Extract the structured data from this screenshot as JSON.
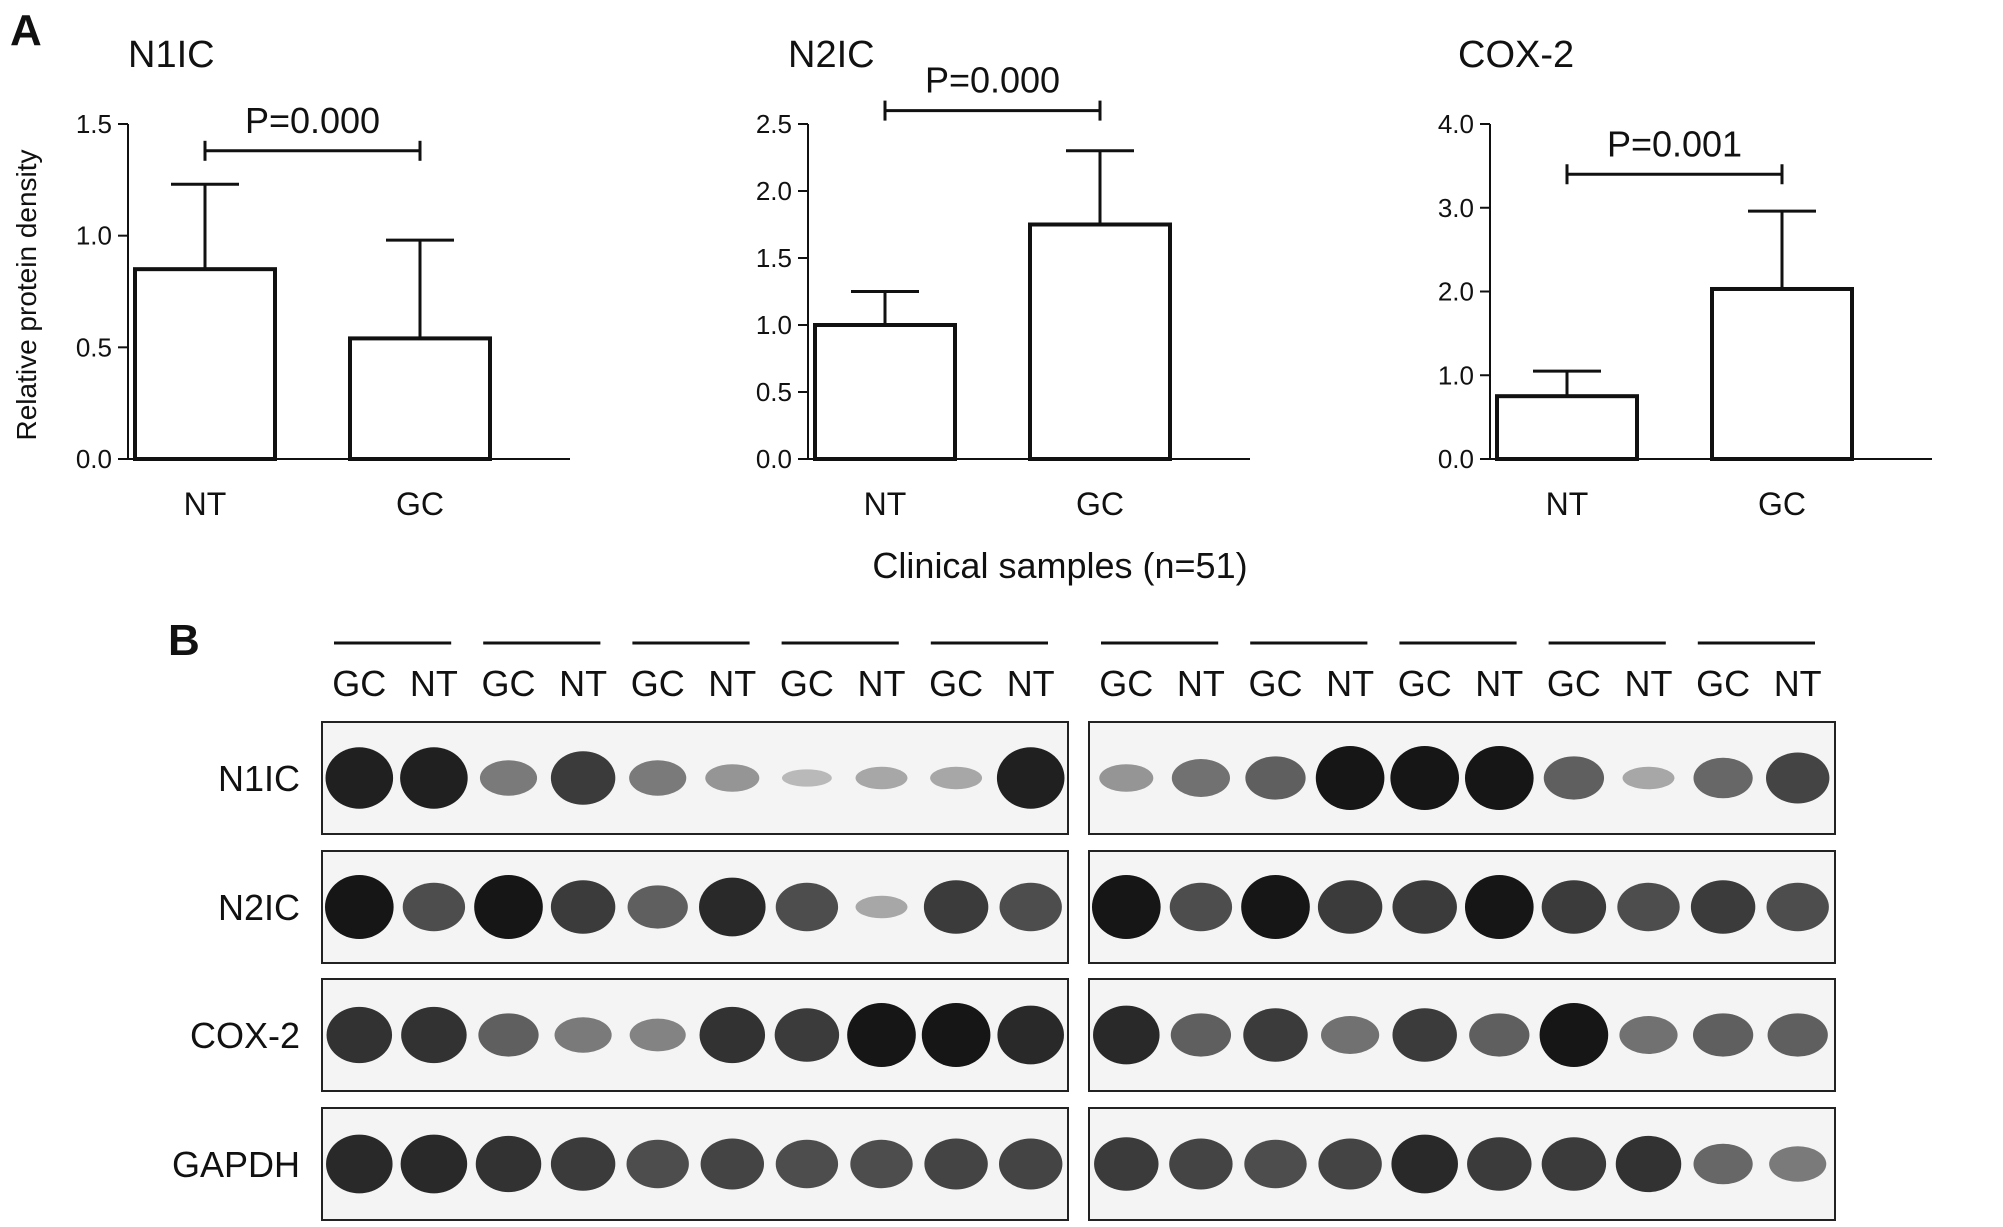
{
  "panel_a": {
    "letter": "A",
    "ylabel": "Relative protein density",
    "xlabel_shared": "Clinical samples (n=51)"
  },
  "chart_data": [
    {
      "type": "bar",
      "title": "N1IC",
      "categories": [
        "NT",
        "GC"
      ],
      "values": [
        0.85,
        0.54
      ],
      "error_upper": [
        0.38,
        0.44
      ],
      "ylim": [
        0,
        1.5
      ],
      "yticks": [
        "0.0",
        "0.5",
        "1.0",
        "1.5"
      ],
      "ytick_values": [
        0,
        0.5,
        1.0,
        1.5
      ],
      "annotation": {
        "text": "P=0.000",
        "bracket_level": 1.38,
        "label_level": 1.45
      },
      "ylabel": "Relative protein density",
      "xlabel": "",
      "grid": false,
      "bar_fill": "#ffffff",
      "bar_stroke": "#111111"
    },
    {
      "type": "bar",
      "title": "N2IC",
      "categories": [
        "NT",
        "GC"
      ],
      "values": [
        1.0,
        1.75
      ],
      "error_upper": [
        0.25,
        0.55
      ],
      "ylim": [
        0,
        2.5
      ],
      "yticks": [
        "0.0",
        "0.5",
        "1.0",
        "1.5",
        "2.0",
        "2.5"
      ],
      "ytick_values": [
        0,
        0.5,
        1.0,
        1.5,
        2.0,
        2.5
      ],
      "annotation": {
        "text": "P=0.000",
        "bracket_level": 2.6,
        "label_level": 2.75
      },
      "ylabel": "",
      "xlabel": "Clinical samples (n=51)",
      "grid": false,
      "bar_fill": "#ffffff",
      "bar_stroke": "#111111"
    },
    {
      "type": "bar",
      "title": "COX-2",
      "categories": [
        "NT",
        "GC"
      ],
      "values": [
        0.75,
        2.03
      ],
      "error_upper": [
        0.3,
        0.93
      ],
      "ylim": [
        0,
        4.0
      ],
      "yticks": [
        "0.0",
        "1.0",
        "2.0",
        "3.0",
        "4.0"
      ],
      "ytick_values": [
        0,
        1.0,
        2.0,
        3.0,
        4.0
      ],
      "annotation": {
        "text": "P=0.001",
        "bracket_level": 3.4,
        "label_level": 3.65
      },
      "ylabel": "",
      "xlabel": "",
      "grid": false,
      "bar_fill": "#ffffff",
      "bar_stroke": "#111111"
    }
  ],
  "panel_b": {
    "letter": "B",
    "lanes": [
      "GC",
      "NT",
      "GC",
      "NT",
      "GC",
      "NT",
      "GC",
      "NT",
      "GC",
      "NT"
    ],
    "lanes_right": [
      "GC",
      "NT",
      "GC",
      "NT",
      "GC",
      "NT",
      "GC",
      "NT",
      "GC",
      "NT"
    ],
    "rows": [
      {
        "label": "N1IC",
        "left": [
          0.95,
          0.95,
          0.45,
          0.8,
          0.45,
          0.3,
          0.1,
          0.2,
          0.2,
          0.95
        ],
        "right": [
          0.3,
          0.5,
          0.6,
          1.0,
          1.0,
          1.0,
          0.6,
          0.2,
          0.55,
          0.75
        ]
      },
      {
        "label": "N2IC",
        "left": [
          1.0,
          0.7,
          1.0,
          0.8,
          0.6,
          0.9,
          0.7,
          0.2,
          0.8,
          0.7
        ],
        "right": [
          1.0,
          0.7,
          1.0,
          0.8,
          0.8,
          1.0,
          0.8,
          0.7,
          0.8,
          0.7
        ]
      },
      {
        "label": "COX-2",
        "left": [
          0.85,
          0.85,
          0.6,
          0.45,
          0.4,
          0.85,
          0.8,
          1.0,
          1.0,
          0.9
        ],
        "right": [
          0.9,
          0.6,
          0.8,
          0.5,
          0.8,
          0.6,
          1.0,
          0.5,
          0.6,
          0.6
        ]
      },
      {
        "label": "GAPDH",
        "left": [
          0.9,
          0.9,
          0.85,
          0.8,
          0.7,
          0.75,
          0.7,
          0.7,
          0.75,
          0.75
        ],
        "right": [
          0.8,
          0.75,
          0.7,
          0.75,
          0.9,
          0.8,
          0.8,
          0.85,
          0.55,
          0.45
        ]
      }
    ]
  }
}
